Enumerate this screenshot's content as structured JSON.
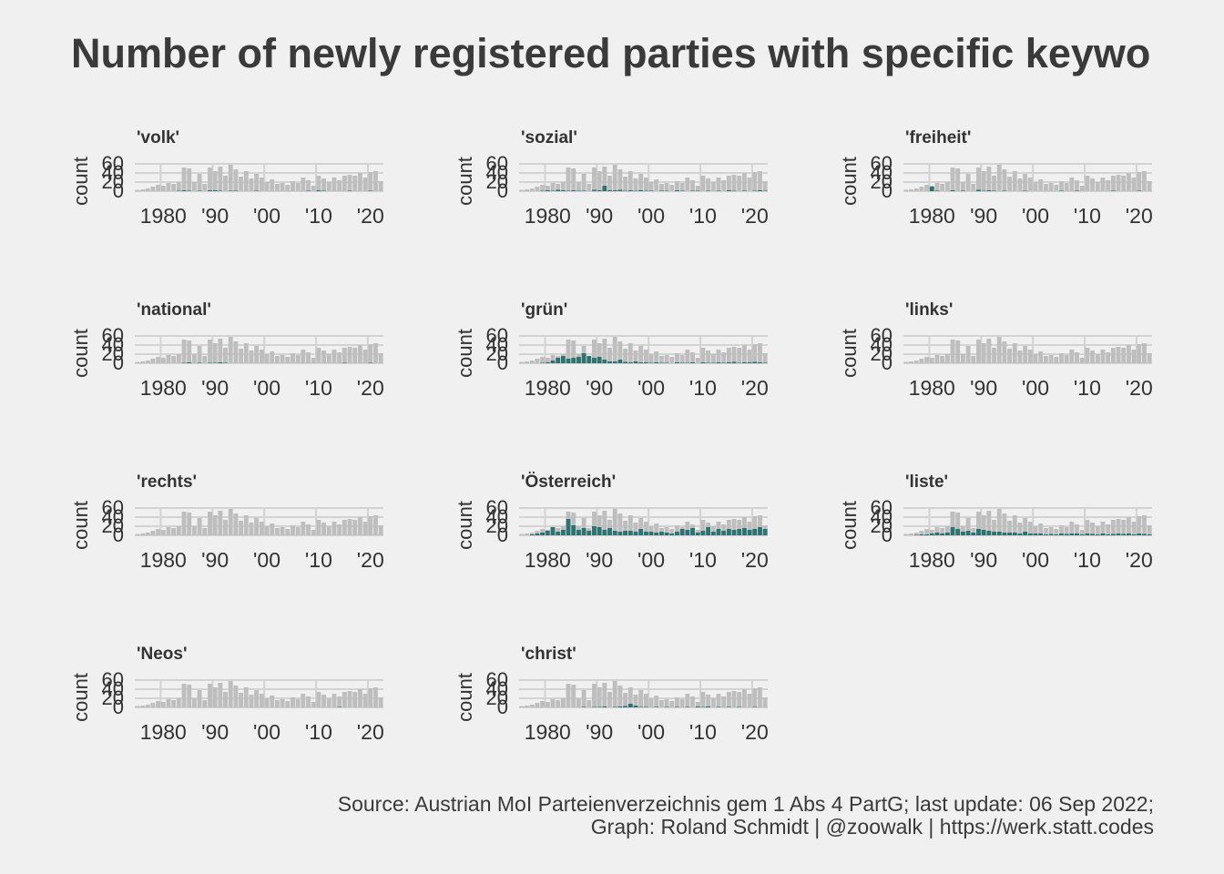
{
  "title": "Number of newly registered parties with specific keywo",
  "caption": {
    "line1": "Source: Austrian MoI Parteienverzeichnis gem 1 Abs 4 PartG; last update: 06 Sep 2022;",
    "line2": "Graph: Roland Schmidt | @zoowalk | https://werk.statt.codes"
  },
  "colors": {
    "background": "#f0f0f0",
    "total_bar": "#bebebe",
    "keyword_bar": "#2e7372",
    "grid": "#d3d3d3",
    "text": "#333333"
  },
  "chart_data": {
    "type": "bar",
    "layout": "facet-grid 4x3",
    "ylabel": "count",
    "ylim": [
      0,
      60
    ],
    "y_ticks": [
      0,
      20,
      40,
      60
    ],
    "x_range": [
      1975,
      2022
    ],
    "x_ticks": [
      1980,
      1990,
      2000,
      2010,
      2020
    ],
    "x_tick_labels": [
      "1980",
      "'90",
      "'00",
      "'10",
      "'20"
    ],
    "grid": true,
    "x": [
      1975,
      1976,
      1977,
      1978,
      1979,
      1980,
      1981,
      1982,
      1983,
      1984,
      1985,
      1986,
      1987,
      1988,
      1989,
      1990,
      1991,
      1992,
      1993,
      1994,
      1995,
      1996,
      1997,
      1998,
      1999,
      2000,
      2001,
      2002,
      2003,
      2004,
      2005,
      2006,
      2007,
      2008,
      2009,
      2010,
      2011,
      2012,
      2013,
      2014,
      2015,
      2016,
      2017,
      2018,
      2019,
      2020,
      2021,
      2022
    ],
    "total": [
      3,
      4,
      6,
      10,
      14,
      12,
      18,
      16,
      20,
      52,
      50,
      20,
      38,
      16,
      52,
      44,
      54,
      34,
      58,
      48,
      32,
      44,
      28,
      38,
      30,
      20,
      26,
      16,
      18,
      14,
      22,
      18,
      30,
      24,
      12,
      34,
      28,
      20,
      30,
      24,
      34,
      36,
      34,
      40,
      30,
      42,
      44,
      22
    ],
    "facets": [
      {
        "label": "'volk'",
        "keyword": [
          0,
          0,
          0,
          0,
          0,
          0,
          0,
          0,
          1,
          2,
          1,
          0,
          1,
          0,
          2,
          2,
          1,
          0,
          1,
          1,
          0,
          0,
          0,
          1,
          0,
          0,
          0,
          0,
          0,
          0,
          0,
          0,
          0,
          1,
          0,
          2,
          1,
          0,
          0,
          0,
          0,
          1,
          0,
          0,
          0,
          1,
          0,
          0
        ]
      },
      {
        "label": "'sozial'",
        "keyword": [
          0,
          0,
          0,
          0,
          1,
          2,
          1,
          3,
          2,
          1,
          2,
          1,
          1,
          0,
          3,
          2,
          12,
          2,
          2,
          3,
          1,
          2,
          1,
          2,
          1,
          1,
          0,
          1,
          1,
          0,
          2,
          1,
          0,
          1,
          1,
          0,
          1,
          0,
          1,
          0,
          2,
          1,
          0,
          1,
          0,
          1,
          2,
          1
        ]
      },
      {
        "label": "'freiheit'",
        "keyword": [
          0,
          0,
          0,
          0,
          0,
          10,
          1,
          0,
          0,
          2,
          0,
          1,
          0,
          0,
          3,
          1,
          2,
          1,
          0,
          1,
          0,
          0,
          0,
          1,
          0,
          0,
          0,
          0,
          0,
          0,
          1,
          0,
          0,
          1,
          0,
          0,
          0,
          0,
          0,
          0,
          1,
          0,
          0,
          0,
          0,
          1,
          0,
          0
        ]
      },
      {
        "label": "'national'",
        "keyword": [
          0,
          0,
          0,
          0,
          0,
          0,
          0,
          0,
          0,
          1,
          2,
          0,
          1,
          0,
          1,
          1,
          2,
          1,
          0,
          0,
          0,
          0,
          0,
          0,
          0,
          0,
          0,
          0,
          0,
          0,
          0,
          0,
          0,
          0,
          0,
          0,
          0,
          0,
          0,
          0,
          1,
          0,
          0,
          0,
          0,
          1,
          0,
          0
        ]
      },
      {
        "label": "'grün'",
        "keyword": [
          0,
          0,
          0,
          0,
          1,
          2,
          6,
          12,
          16,
          10,
          12,
          14,
          22,
          16,
          12,
          14,
          8,
          4,
          4,
          8,
          3,
          2,
          4,
          2,
          2,
          1,
          2,
          1,
          1,
          0,
          2,
          1,
          1,
          2,
          0,
          2,
          1,
          1,
          2,
          1,
          2,
          3,
          1,
          2,
          2,
          3,
          2,
          1
        ]
      },
      {
        "label": "'links'",
        "keyword": [
          0,
          0,
          0,
          0,
          0,
          0,
          0,
          0,
          0,
          0,
          0,
          0,
          0,
          0,
          0,
          0,
          0,
          0,
          0,
          0,
          0,
          0,
          0,
          0,
          0,
          0,
          0,
          0,
          0,
          0,
          0,
          0,
          0,
          0,
          0,
          0,
          0,
          0,
          0,
          0,
          0,
          0,
          0,
          0,
          0,
          0,
          0,
          0
        ]
      },
      {
        "label": "'rechts'",
        "keyword": [
          0,
          0,
          0,
          0,
          0,
          0,
          0,
          0,
          0,
          0,
          0,
          0,
          0,
          0,
          0,
          0,
          0,
          0,
          0,
          0,
          0,
          0,
          0,
          0,
          0,
          0,
          0,
          0,
          0,
          0,
          0,
          0,
          0,
          0,
          0,
          0,
          0,
          0,
          0,
          0,
          0,
          0,
          0,
          0,
          0,
          0,
          0,
          0
        ]
      },
      {
        "label": "'Österreich'",
        "keyword": [
          0,
          0,
          2,
          4,
          6,
          10,
          18,
          8,
          12,
          36,
          22,
          12,
          16,
          10,
          20,
          18,
          12,
          16,
          10,
          8,
          10,
          10,
          8,
          14,
          8,
          8,
          6,
          8,
          6,
          4,
          8,
          14,
          12,
          16,
          6,
          10,
          18,
          8,
          14,
          10,
          14,
          12,
          14,
          16,
          12,
          14,
          18,
          14
        ]
      },
      {
        "label": "'liste'",
        "keyword": [
          0,
          0,
          1,
          2,
          2,
          4,
          6,
          4,
          6,
          18,
          14,
          8,
          10,
          6,
          14,
          12,
          10,
          8,
          8,
          6,
          6,
          6,
          4,
          8,
          4,
          4,
          4,
          2,
          3,
          2,
          4,
          3,
          4,
          4,
          2,
          4,
          3,
          2,
          4,
          2,
          3,
          4,
          3,
          4,
          2,
          4,
          3,
          2
        ]
      },
      {
        "label": "'Neos'",
        "keyword": [
          0,
          0,
          0,
          0,
          0,
          0,
          0,
          0,
          0,
          0,
          0,
          0,
          0,
          0,
          0,
          0,
          0,
          0,
          0,
          0,
          0,
          0,
          0,
          0,
          0,
          0,
          0,
          0,
          0,
          0,
          0,
          0,
          0,
          0,
          0,
          0,
          0,
          0,
          0,
          1,
          0,
          0,
          0,
          0,
          0,
          0,
          0,
          0
        ]
      },
      {
        "label": "'christ'",
        "keyword": [
          0,
          0,
          0,
          0,
          0,
          0,
          0,
          0,
          0,
          0,
          0,
          0,
          1,
          0,
          1,
          1,
          2,
          0,
          1,
          2,
          3,
          8,
          4,
          1,
          1,
          0,
          1,
          0,
          1,
          0,
          1,
          0,
          1,
          0,
          2,
          1,
          2,
          0,
          1,
          0,
          1,
          0,
          1,
          0,
          0,
          1,
          0,
          0
        ]
      }
    ]
  }
}
